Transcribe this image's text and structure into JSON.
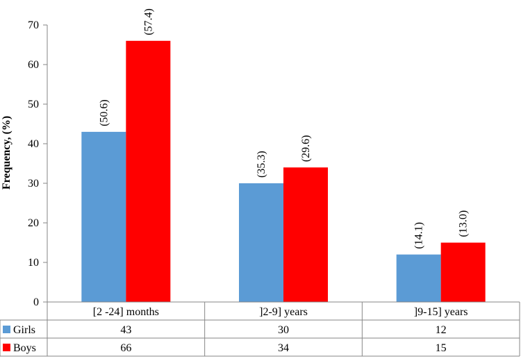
{
  "chart_data": {
    "type": "bar",
    "categories": [
      "[2 -24] months",
      "]2-9] years",
      "]9-15] years"
    ],
    "series": [
      {
        "name": "Girls",
        "values": [
          43,
          30,
          12
        ],
        "labels": [
          "(50.6)",
          "(35.3)",
          "(14.1)"
        ],
        "color": "#5b9bd5"
      },
      {
        "name": "Boys",
        "values": [
          66,
          34,
          15
        ],
        "labels": [
          "(57.4)",
          "(29.6)",
          "(13.0)"
        ],
        "color": "#ff0000"
      }
    ],
    "ylabel": "Frequency, (%)",
    "ylim": [
      0,
      70
    ],
    "yticks": [
      0,
      10,
      20,
      30,
      40,
      50,
      60,
      70
    ],
    "grid": false,
    "data_table": true
  }
}
